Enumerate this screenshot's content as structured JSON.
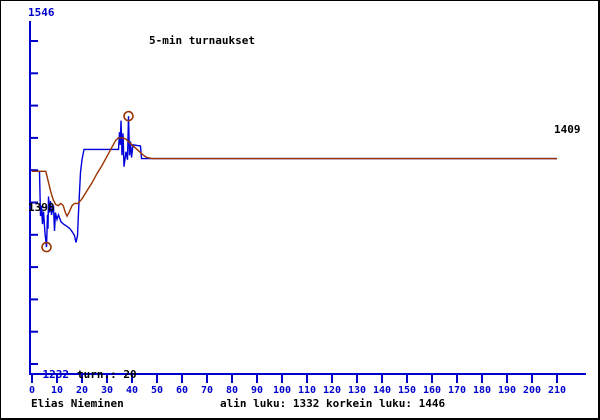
{
  "frame": {
    "bg": "#ffffff",
    "border_color": "#000000"
  },
  "chart_data": {
    "type": "line",
    "title": "5-min turnaukset",
    "xlabel": "",
    "ylabel": "",
    "xlim": [
      0,
      210
    ],
    "ylim": [
      1232,
      1546
    ],
    "grid": false,
    "legend_position": "none",
    "axis_color": "#0000cc",
    "marker_color": "#993300",
    "y_axis_top_label": "1546",
    "y_axis_bottom_label": "1232",
    "tournament_count_label": "turn.: 20",
    "start_rating_label": "1398",
    "final_rating_label": "1409",
    "x_ticks": [
      0,
      10,
      20,
      30,
      40,
      50,
      60,
      70,
      80,
      90,
      100,
      110,
      120,
      130,
      140,
      150,
      160,
      170,
      180,
      190,
      200,
      210
    ],
    "series": [
      {
        "name": "game-rating",
        "color": "#0000dd",
        "points": [
          [
            0,
            1398
          ],
          [
            3,
            1398
          ],
          [
            3.4,
            1359
          ],
          [
            3.8,
            1368
          ],
          [
            4.2,
            1352
          ],
          [
            4.6,
            1363
          ],
          [
            5.2,
            1344
          ],
          [
            5.8,
            1332
          ],
          [
            6.2,
            1360
          ],
          [
            6.4,
            1348
          ],
          [
            6.6,
            1376
          ],
          [
            7,
            1362
          ],
          [
            7.4,
            1372
          ],
          [
            7.8,
            1360
          ],
          [
            8.6,
            1368
          ],
          [
            9,
            1346
          ],
          [
            9.4,
            1362
          ],
          [
            10,
            1356
          ],
          [
            10.6,
            1360
          ],
          [
            11.6,
            1354
          ],
          [
            12.6,
            1352
          ],
          [
            14,
            1350
          ],
          [
            15.2,
            1348
          ],
          [
            16.2,
            1345
          ],
          [
            17,
            1342
          ],
          [
            17.6,
            1336
          ],
          [
            18.2,
            1342
          ],
          [
            18.6,
            1362
          ],
          [
            19,
            1380
          ],
          [
            19.4,
            1397
          ],
          [
            20,
            1408
          ],
          [
            20.8,
            1417
          ],
          [
            34.6,
            1417
          ],
          [
            35,
            1432
          ],
          [
            35.3,
            1421
          ],
          [
            35.6,
            1442
          ],
          [
            36,
            1412
          ],
          [
            36.4,
            1431
          ],
          [
            36.8,
            1402
          ],
          [
            37.6,
            1415
          ],
          [
            38.2,
            1408
          ],
          [
            38.6,
            1446
          ],
          [
            39,
            1412
          ],
          [
            39.4,
            1424
          ],
          [
            39.8,
            1410
          ],
          [
            40.4,
            1421
          ],
          [
            43.4,
            1420
          ],
          [
            43.8,
            1409
          ],
          [
            210,
            1409
          ]
        ]
      },
      {
        "name": "trend-rating",
        "color": "#993300",
        "points": [
          [
            0,
            1398
          ],
          [
            5.5,
            1398
          ],
          [
            6.5,
            1389
          ],
          [
            7.5,
            1380
          ],
          [
            8.5,
            1373
          ],
          [
            9.5,
            1369
          ],
          [
            10.5,
            1368
          ],
          [
            11.5,
            1370
          ],
          [
            12.5,
            1368
          ],
          [
            13.2,
            1363
          ],
          [
            14,
            1359
          ],
          [
            15,
            1363
          ],
          [
            16,
            1368
          ],
          [
            17,
            1370
          ],
          [
            18.4,
            1370
          ],
          [
            20,
            1374
          ],
          [
            22,
            1381
          ],
          [
            24,
            1388
          ],
          [
            26,
            1396
          ],
          [
            28,
            1403
          ],
          [
            30,
            1411
          ],
          [
            32,
            1419
          ],
          [
            33.5,
            1425
          ],
          [
            34.5,
            1427
          ],
          [
            36.5,
            1427
          ],
          [
            37.5,
            1426
          ],
          [
            38.5,
            1424
          ],
          [
            40,
            1421
          ],
          [
            41.5,
            1418
          ],
          [
            43,
            1415
          ],
          [
            44.5,
            1412
          ],
          [
            46,
            1410
          ],
          [
            48,
            1409
          ],
          [
            210,
            1409
          ]
        ]
      }
    ],
    "markers": [
      {
        "name": "min-rating-marker",
        "x": 5.8,
        "y": 1332
      },
      {
        "name": "max-rating-marker",
        "x": 38.6,
        "y": 1446
      }
    ],
    "min_rating": 1332,
    "max_rating": 1446,
    "tournaments": 20
  },
  "footer": {
    "player_name": "Elias Nieminen",
    "stats": "alin luku: 1332 korkein luku: 1446"
  }
}
